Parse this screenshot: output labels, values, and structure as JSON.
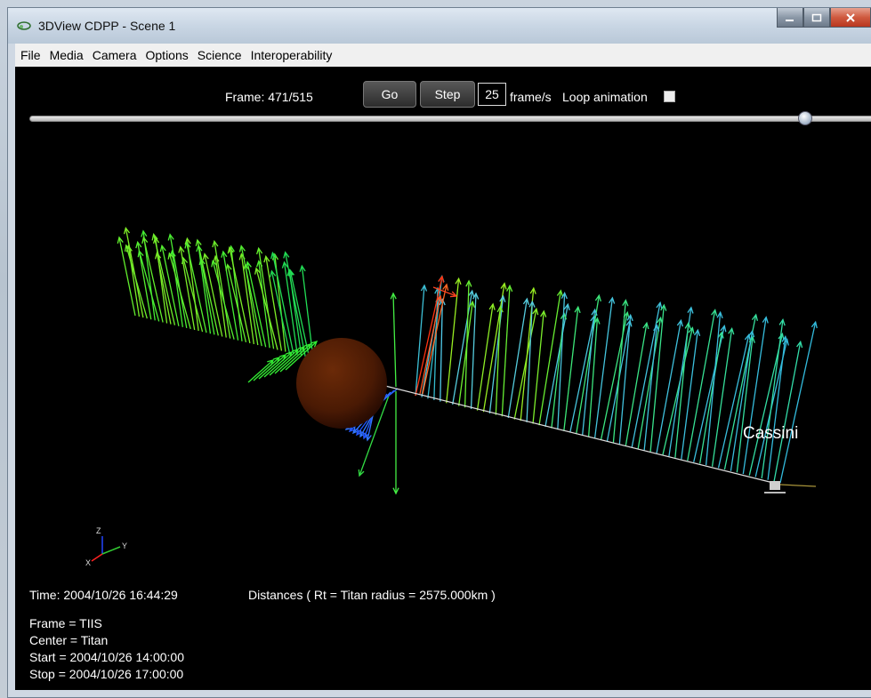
{
  "window": {
    "title": "3DView CDPP - Scene 1",
    "icon": "app-icon",
    "controls": [
      "minimize-icon",
      "maximize-icon",
      "close-icon"
    ]
  },
  "menu": {
    "items": [
      {
        "label": "File"
      },
      {
        "label": "Media"
      },
      {
        "label": "Camera"
      },
      {
        "label": "Options"
      },
      {
        "label": "Science"
      },
      {
        "label": "Interoperability"
      }
    ]
  },
  "animation": {
    "frame_label": "Frame: 471/515",
    "current_frame": 471,
    "total_frames": 515,
    "go_label": "Go",
    "step_label": "Step",
    "fps_value": "25",
    "fps_unit": "frame/s",
    "loop_label": "Loop animation",
    "loop_checked": false,
    "slider_fraction": 0.915
  },
  "scene": {
    "background": "#000000",
    "central_body_color": "#6b2a08",
    "spacecraft_label": "Cassini",
    "axes": {
      "x": "X",
      "y": "Y",
      "z": "Z"
    }
  },
  "info": {
    "time": "Time: 2004/10/26 16:44:29",
    "distances": "Distances ( Rt = Titan radius = 2575.000km )",
    "frame": "Frame = TIIS",
    "center": "Center = Titan",
    "start": "Start = 2004/10/26 14:00:00",
    "stop": "Stop = 2004/10/26 17:00:00"
  }
}
